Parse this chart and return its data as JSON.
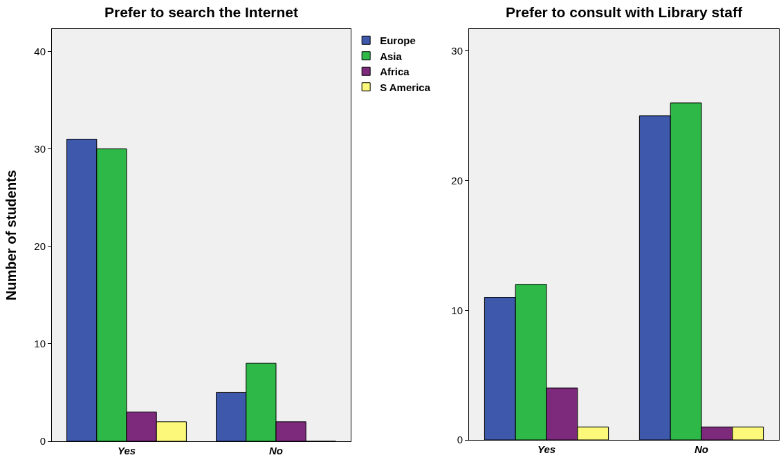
{
  "chart_data": [
    {
      "type": "bar",
      "title": "Prefer to search the Internet",
      "ylabel": "Number of students",
      "categories": [
        "Yes",
        "No"
      ],
      "series": [
        {
          "name": "Europe",
          "color": "#3e58ac",
          "values": [
            31,
            5
          ]
        },
        {
          "name": "Asia",
          "color": "#2eb848",
          "values": [
            30,
            8
          ]
        },
        {
          "name": "Africa",
          "color": "#7d2a7d",
          "values": [
            3,
            2
          ]
        },
        {
          "name": "S America",
          "color": "#fbf87a",
          "values": [
            2,
            0
          ]
        }
      ],
      "ylim": [
        0,
        42.3
      ],
      "yticks": [
        0,
        10,
        20,
        30,
        40
      ],
      "grid": false,
      "legend": "top right"
    },
    {
      "type": "bar",
      "title": "Prefer to consult with Library staff",
      "categories": [
        "Yes",
        "No"
      ],
      "series": [
        {
          "color": "#3e58ac",
          "values": [
            11,
            25
          ]
        },
        {
          "color": "#2eb848",
          "values": [
            12,
            26
          ]
        },
        {
          "color": "#7d2a7d",
          "values": [
            4,
            1
          ]
        },
        {
          "color": "#fbf87a",
          "values": [
            1,
            1
          ]
        }
      ],
      "ylim": [
        0,
        31.7
      ],
      "yticks": [
        0,
        10,
        20,
        30
      ],
      "grid": false,
      "legend": false
    }
  ]
}
